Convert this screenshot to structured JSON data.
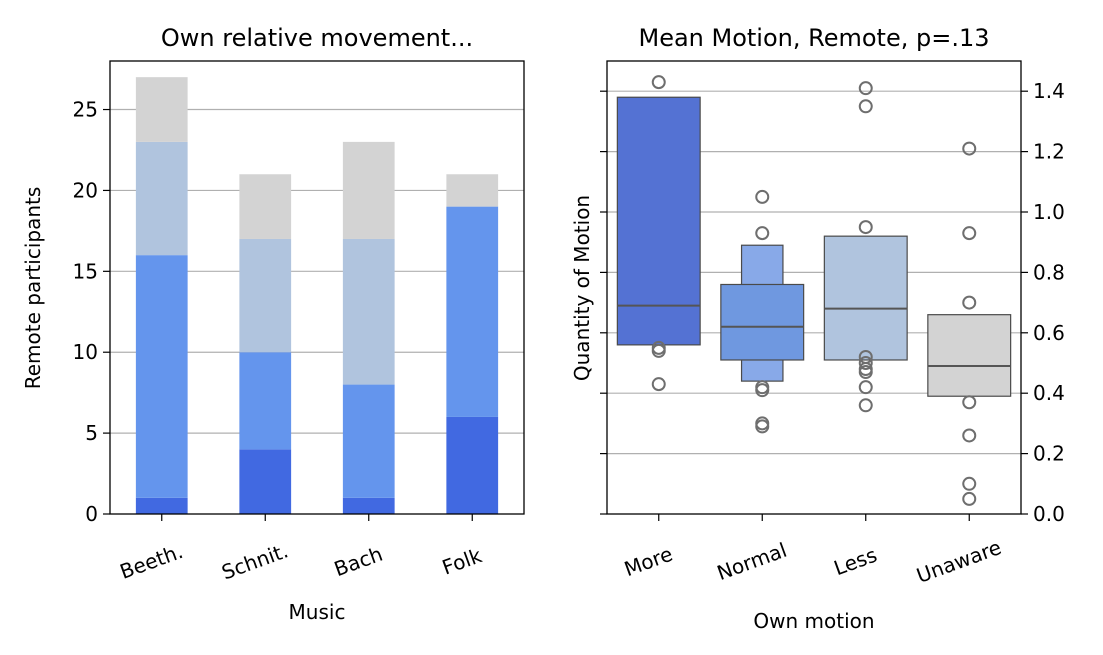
{
  "chart_data": [
    {
      "type": "bar",
      "stacked": true,
      "title": "Own relative movement...",
      "xlabel": "Music",
      "ylabel": "Remote participants",
      "categories": [
        "Beeth.",
        "Schnit.",
        "Bach",
        "Folk"
      ],
      "series": [
        {
          "values": [
            1,
            4,
            1,
            6
          ],
          "color": "#4169e1"
        },
        {
          "values": [
            15,
            6,
            7,
            13
          ],
          "color": "#6495ed"
        },
        {
          "values": [
            7,
            7,
            9,
            0
          ],
          "color": "#b0c4de"
        },
        {
          "values": [
            4,
            4,
            6,
            2
          ],
          "color": "#d3d3d3"
        }
      ],
      "ylim": [
        0,
        28
      ],
      "yticks": [
        "0",
        "5",
        "10",
        "15",
        "20",
        "25"
      ],
      "grid": "horizontal"
    },
    {
      "type": "boxen",
      "title": "Mean Motion, Remote, p=.13",
      "xlabel": "Own motion",
      "ylabel": "Quantity of Motion",
      "categories": [
        "More",
        "Normal",
        "Less",
        "Unaware"
      ],
      "ylim": [
        0,
        1.5
      ],
      "yaxis_side": "right",
      "yticks": [
        "0.0",
        "0.2",
        "0.4",
        "0.6",
        "0.8",
        "1.0",
        "1.2",
        "1.4"
      ],
      "grid": "horizontal",
      "boxes": [
        {
          "category": "More",
          "color": "#5472d3",
          "levels": [
            [
              0.56,
              1.38
            ]
          ],
          "median": 0.69,
          "outliers": [
            1.43,
            0.54,
            0.55,
            0.43
          ]
        },
        {
          "category": "Normal",
          "color": "#6f98e0",
          "inner_color": "#88a9e8",
          "levels": [
            [
              0.51,
              0.76
            ],
            [
              0.44,
              0.89
            ]
          ],
          "median": 0.62,
          "outliers": [
            1.05,
            0.93,
            0.42,
            0.41,
            0.3,
            0.29
          ]
        },
        {
          "category": "Less",
          "color": "#b0c4de",
          "levels": [
            [
              0.51,
              0.92
            ]
          ],
          "median": 0.68,
          "outliers": [
            1.41,
            1.35,
            0.95,
            0.52,
            0.5,
            0.48,
            0.47,
            0.42,
            0.36
          ]
        },
        {
          "category": "Unaware",
          "color": "#d3d3d3",
          "levels": [
            [
              0.39,
              0.66
            ]
          ],
          "median": 0.49,
          "outliers": [
            1.21,
            0.93,
            0.7,
            0.37,
            0.26,
            0.1,
            0.05
          ]
        }
      ]
    }
  ]
}
